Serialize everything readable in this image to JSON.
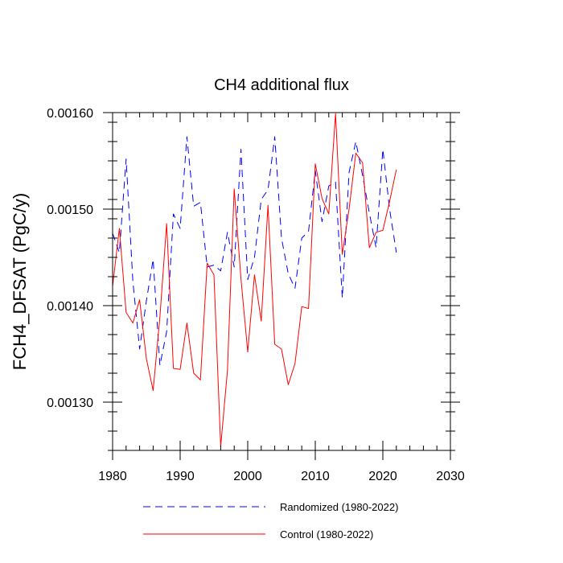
{
  "chart_data": {
    "type": "line",
    "title": "CH4 additional flux",
    "xlabel": "",
    "ylabel": "FCH4_DFSAT  (PgC/y)",
    "xlim": [
      1980,
      2030
    ],
    "ylim": [
      0.00125,
      0.0016
    ],
    "x_ticks": [
      1980,
      1990,
      2000,
      2010,
      2020,
      2030
    ],
    "x_tick_labels": [
      "1980",
      "1990",
      "2000",
      "2010",
      "2020",
      "2030"
    ],
    "y_ticks": [
      0.0013,
      0.0014,
      0.0015,
      0.0016
    ],
    "y_tick_labels": [
      "0.00130",
      "0.00140",
      "0.00150",
      "0.00160"
    ],
    "legend_position": "bottom",
    "series": [
      {
        "name": "Randomized (1980-2022)",
        "color": "#0000ff",
        "dash": "dashed",
        "x": [
          1980,
          1981,
          1982,
          1983,
          1984,
          1985,
          1986,
          1987,
          1988,
          1989,
          1990,
          1991,
          1992,
          1993,
          1994,
          1995,
          1996,
          1997,
          1998,
          1999,
          2000,
          2001,
          2002,
          2003,
          2004,
          2005,
          2006,
          2007,
          2008,
          2009,
          2010,
          2011,
          2012,
          2013,
          2014,
          2015,
          2016,
          2017,
          2018,
          2019,
          2020,
          2021,
          2022
        ],
        "values": [
          0.001475,
          0.001455,
          0.001552,
          0.001425,
          0.001355,
          0.001405,
          0.001448,
          0.001338,
          0.001373,
          0.001495,
          0.00148,
          0.001575,
          0.001503,
          0.001507,
          0.00144,
          0.001442,
          0.001436,
          0.001476,
          0.00144,
          0.001562,
          0.001427,
          0.00145,
          0.00151,
          0.00152,
          0.001575,
          0.00147,
          0.001433,
          0.001418,
          0.00147,
          0.001477,
          0.00154,
          0.001487,
          0.001524,
          0.001528,
          0.001408,
          0.001538,
          0.00157,
          0.001535,
          0.001496,
          0.00146,
          0.001562,
          0.0015,
          0.001455
        ]
      },
      {
        "name": "Control (1980-2022)",
        "color": "#ff0000",
        "dash": "solid",
        "x": [
          1980,
          1981,
          1982,
          1983,
          1984,
          1985,
          1986,
          1987,
          1988,
          1989,
          1990,
          1991,
          1992,
          1993,
          1994,
          1995,
          1996,
          1997,
          1998,
          1999,
          2000,
          2001,
          2002,
          2003,
          2004,
          2005,
          2006,
          2007,
          2008,
          2009,
          2010,
          2011,
          2012,
          2013,
          2014,
          2015,
          2016,
          2017,
          2018,
          2019,
          2020,
          2021,
          2022
        ],
        "values": [
          0.00142,
          0.00148,
          0.001393,
          0.001382,
          0.001406,
          0.001345,
          0.001312,
          0.001388,
          0.001485,
          0.001335,
          0.001334,
          0.001382,
          0.00133,
          0.001323,
          0.001444,
          0.001432,
          0.001254,
          0.001333,
          0.001521,
          0.001428,
          0.001352,
          0.001432,
          0.001384,
          0.001504,
          0.00136,
          0.001355,
          0.001318,
          0.00134,
          0.001399,
          0.001397,
          0.001547,
          0.001511,
          0.001495,
          0.001599,
          0.001453,
          0.0015,
          0.001558,
          0.001548,
          0.00146,
          0.001476,
          0.001478,
          0.001508,
          0.001541
        ]
      }
    ]
  }
}
